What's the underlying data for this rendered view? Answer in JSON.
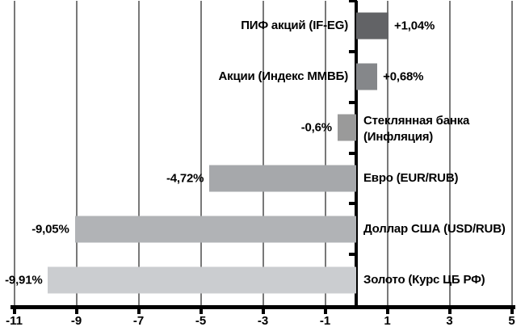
{
  "chart_data": {
    "type": "bar",
    "orientation": "horizontal",
    "title": "",
    "categories": [
      "ПИФ акций (IF-EG)",
      "Акции (Индекс ММВБ)",
      "Стеклянная банка (Инфляция)",
      "Евро (EUR/RUB)",
      "Доллар США (USD/RUB)",
      "Золото (Курс ЦБ РФ)"
    ],
    "category_label_lines": [
      [
        "ПИФ акций (IF-EG)"
      ],
      [
        "Акции (Индекс ММВБ)"
      ],
      [
        "Стеклянная банка",
        "(Инфляция)"
      ],
      [
        "Евро (EUR/RUB)"
      ],
      [
        "Доллар США (USD/RUB)"
      ],
      [
        "Золото (Курс ЦБ РФ)"
      ]
    ],
    "values": [
      1.04,
      0.68,
      -0.6,
      -4.72,
      -9.05,
      -9.91
    ],
    "value_labels": [
      "+1,04%",
      "+0,68%",
      "-0,6%",
      "-4,72%",
      "-9,05%",
      "-9,91%"
    ],
    "bar_colors": [
      "#626366",
      "#85878a",
      "#9a9a9a",
      "#a6a8ab",
      "#b1b3b6",
      "#cbcdd0"
    ],
    "xlim": [
      -11,
      5
    ],
    "x_ticks": [
      -11,
      -9,
      -7,
      -5,
      -3,
      -1,
      1,
      3,
      5
    ],
    "x_tick_labels": [
      "-11",
      "-9",
      "-7",
      "-5",
      "-3",
      "-1",
      "1",
      "3",
      "5"
    ],
    "grid": true,
    "legend": "none",
    "axis_color": "#000000",
    "gridline_color": "#787878",
    "background_color": "#ffffff",
    "text_color": "#000000"
  }
}
